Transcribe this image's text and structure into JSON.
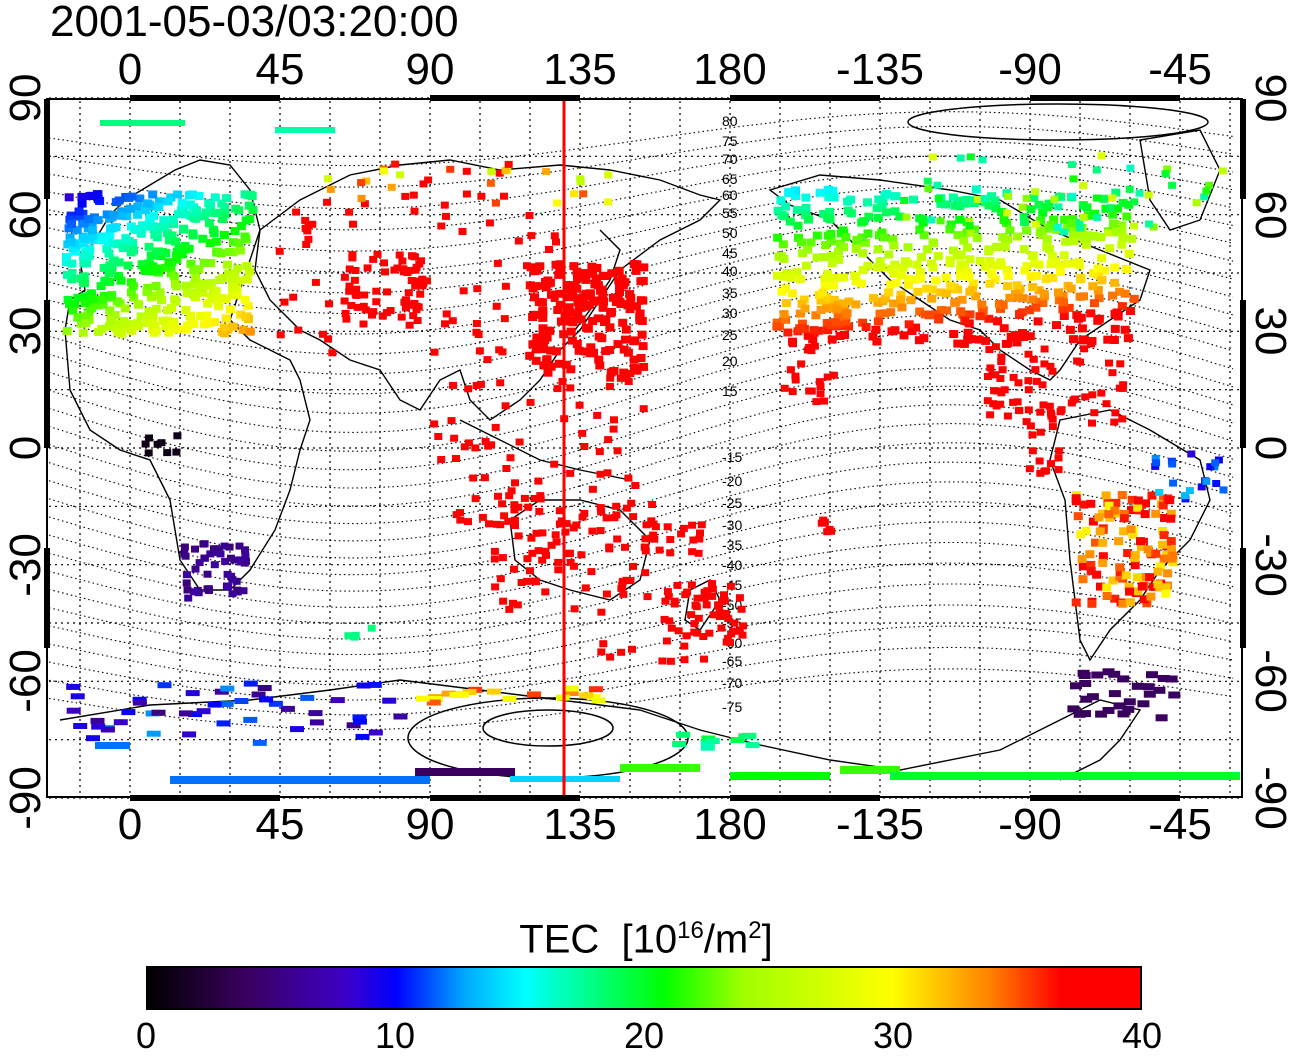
{
  "timestamp": "2001-05-03/03:20:00",
  "top_ticks": [
    "0",
    "45",
    "90",
    "135",
    "180",
    "-135",
    "-90",
    "-45"
  ],
  "bottom_ticks": [
    "0",
    "45",
    "90",
    "135",
    "180",
    "-135",
    "-90",
    "-45"
  ],
  "left_ticks": [
    "90",
    "60",
    "30",
    "0",
    "-30",
    "-60",
    "-90"
  ],
  "right_ticks": [
    "90",
    "60",
    "30",
    "0",
    "-30",
    "-60",
    "-90"
  ],
  "contour_labels": [
    "80",
    "75",
    "70",
    "65",
    "60",
    "55",
    "50",
    "45",
    "40",
    "35",
    "30",
    "25",
    "20",
    "15",
    "-15",
    "-20",
    "-25",
    "-30",
    "-35",
    "-40",
    "-45",
    "-50",
    "-55",
    "-60",
    "-65",
    "-70",
    "-75"
  ],
  "colorbar": {
    "title": "TEC",
    "unit_prefix": "[10",
    "unit_exp": "16",
    "unit_mid": "/m",
    "unit_exp2": "2",
    "unit_suffix": "]",
    "ticks": [
      "0",
      "10",
      "20",
      "30",
      "40"
    ],
    "range": [
      0,
      40
    ]
  },
  "meridian_marker_color": "#ff0000",
  "chart_data": {
    "type": "heatmap",
    "x_range": [
      -24,
      336
    ],
    "y_range": [
      -95,
      95
    ],
    "grid": "dotted 15 degree",
    "regions": [
      {
        "lon_range": [
          -20,
          40
        ],
        "lat_range": [
          35,
          75
        ],
        "tec": "15-28"
      },
      {
        "lon_range": [
          0,
          40
        ],
        "lat_range": [
          -35,
          -25
        ],
        "tec": "4-8"
      },
      {
        "lon_range": [
          130,
          150
        ],
        "lat_range": [
          20,
          55
        ],
        "tec": "40"
      },
      {
        "lon_range": [
          230,
          290
        ],
        "lat_range": [
          25,
          70
        ],
        "tec": "20-38"
      },
      {
        "lon_range": [
          290,
          310
        ],
        "lat_range": [
          -40,
          -10
        ],
        "tec": "35-40"
      },
      {
        "lon_range": [
          10,
          110
        ],
        "lat_range": [
          -90,
          -70
        ],
        "tec": "5-15"
      }
    ]
  }
}
